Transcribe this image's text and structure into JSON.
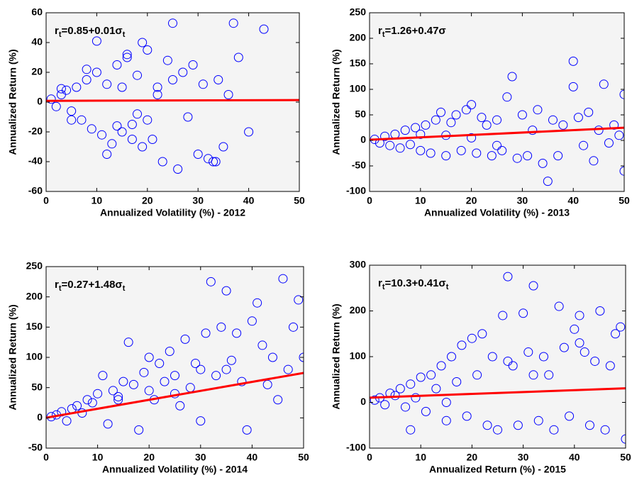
{
  "chart_data": [
    {
      "type": "scatter",
      "xlabel": "Annualized Volatility (%) - 2012",
      "ylabel": "Annualized Return (%)",
      "annotation": [
        "r",
        "t",
        "=0.85+0.01σ",
        "t"
      ],
      "xlim": [
        0,
        50
      ],
      "xticks": [
        0,
        10,
        20,
        30,
        40,
        50
      ],
      "ylim": [
        -60,
        60
      ],
      "yticks": [
        -60,
        -40,
        -20,
        0,
        20,
        40,
        60
      ],
      "color": "#0000ff",
      "x": [
        1,
        2,
        3,
        4,
        5,
        6,
        7,
        8,
        9,
        10,
        11,
        12,
        13,
        14,
        15,
        16,
        17,
        18,
        19,
        20,
        21,
        22,
        23,
        24,
        25,
        26,
        27,
        28,
        29,
        30,
        31,
        32,
        33,
        33.5,
        34,
        35,
        36,
        37,
        38,
        40,
        43,
        10,
        12,
        15,
        18,
        20,
        22,
        25,
        8,
        14,
        16,
        3,
        5,
        17,
        19
      ],
      "values": [
        2,
        -3,
        5,
        8,
        -6,
        10,
        -12,
        15,
        -18,
        20,
        -22,
        12,
        -28,
        25,
        -20,
        30,
        -15,
        18,
        -30,
        35,
        -25,
        10,
        -40,
        28,
        53,
        -45,
        20,
        -10,
        25,
        -35,
        12,
        -38,
        -40,
        -40,
        15,
        -30,
        5,
        53,
        30,
        -20,
        49,
        41,
        -35,
        10,
        -8,
        -12,
        5,
        15,
        22,
        -16,
        32,
        9,
        -12,
        -25,
        40
      ],
      "fit": {
        "x": [
          0,
          50
        ],
        "values": [
          0.85,
          1.35
        ],
        "color": "#ff0000"
      }
    },
    {
      "type": "scatter",
      "xlabel": "Annualized Volatility (%) - 2013",
      "ylabel": "Annualized Return (%)",
      "annotation": [
        "r",
        "t",
        "=1.26+0.47σ"
      ],
      "xlim": [
        0,
        50
      ],
      "xticks": [
        0,
        10,
        20,
        30,
        40,
        50
      ],
      "ylim": [
        -100,
        250
      ],
      "yticks": [
        -100,
        -50,
        0,
        50,
        100,
        150,
        200,
        250
      ],
      "color": "#0000ff",
      "x": [
        1,
        2,
        3,
        4,
        5,
        6,
        7,
        8,
        9,
        10,
        11,
        12,
        13,
        14,
        15,
        16,
        17,
        18,
        19,
        20,
        21,
        22,
        23,
        24,
        25,
        26,
        27,
        28,
        29,
        30,
        31,
        32,
        33,
        34,
        35,
        36,
        37,
        38,
        40,
        40,
        41,
        42,
        43,
        44,
        45,
        46,
        47,
        49,
        50,
        50,
        48,
        15,
        20,
        25,
        10
      ],
      "values": [
        2,
        -5,
        8,
        -10,
        12,
        -15,
        20,
        -8,
        25,
        -20,
        30,
        -25,
        40,
        55,
        -30,
        35,
        50,
        -20,
        60,
        70,
        -25,
        45,
        30,
        -30,
        40,
        -20,
        85,
        125,
        -35,
        50,
        -30,
        20,
        60,
        -45,
        -80,
        40,
        -30,
        30,
        155,
        105,
        45,
        -10,
        55,
        -40,
        20,
        110,
        -5,
        10,
        90,
        -60,
        30,
        10,
        5,
        -10,
        12
      ],
      "fit": {
        "x": [
          0,
          50
        ],
        "values": [
          1.26,
          24.76
        ],
        "color": "#ff0000"
      }
    },
    {
      "type": "scatter",
      "xlabel": "Annualized Volatility (%) - 2014",
      "ylabel": "Annualized Return (%)",
      "annotation": [
        "r",
        "t",
        "=0.27+1.48σ",
        "t"
      ],
      "xlim": [
        0,
        50
      ],
      "xticks": [
        0,
        10,
        20,
        30,
        40,
        50
      ],
      "ylim": [
        -50,
        250
      ],
      "yticks": [
        -50,
        0,
        50,
        100,
        150,
        200,
        250
      ],
      "color": "#0000ff",
      "x": [
        1,
        2,
        3,
        4,
        5,
        6,
        7,
        8,
        9,
        10,
        11,
        12,
        13,
        14,
        15,
        16,
        17,
        18,
        19,
        20,
        21,
        22,
        23,
        24,
        25,
        26,
        27,
        28,
        29,
        30,
        31,
        32,
        33,
        34,
        35,
        36,
        37,
        38,
        39,
        40,
        41,
        42,
        43,
        44,
        45,
        46,
        47,
        48,
        49,
        50,
        14,
        20,
        25,
        30,
        35
      ],
      "values": [
        2,
        5,
        10,
        -5,
        15,
        20,
        8,
        30,
        25,
        40,
        70,
        -10,
        45,
        30,
        60,
        125,
        55,
        -20,
        75,
        100,
        30,
        90,
        60,
        110,
        70,
        20,
        130,
        50,
        90,
        80,
        140,
        225,
        70,
        150,
        210,
        95,
        140,
        60,
        -20,
        160,
        190,
        120,
        55,
        100,
        30,
        230,
        80,
        150,
        195,
        100,
        35,
        45,
        40,
        -5,
        80
      ],
      "fit": {
        "x": [
          0,
          50
        ],
        "values": [
          0.27,
          74.27
        ],
        "color": "#ff0000"
      }
    },
    {
      "type": "scatter",
      "xlabel": "Annualized Return (%) - 2015",
      "ylabel": "Annualized Return (%)",
      "annotation": [
        "r",
        "t",
        "=10.3+0.41σ",
        "t"
      ],
      "xlim": [
        0,
        50
      ],
      "xticks": [
        0,
        10,
        20,
        30,
        40,
        50
      ],
      "ylim": [
        -100,
        300
      ],
      "yticks": [
        -100,
        0,
        100,
        200,
        300
      ],
      "color": "#0000ff",
      "x": [
        1,
        2,
        3,
        4,
        5,
        6,
        7,
        8,
        9,
        10,
        11,
        12,
        13,
        14,
        15,
        16,
        17,
        18,
        19,
        20,
        21,
        22,
        23,
        24,
        25,
        26,
        27,
        28,
        29,
        30,
        31,
        32,
        33,
        34,
        35,
        36,
        37,
        38,
        39,
        40,
        41,
        42,
        43,
        44,
        45,
        46,
        47,
        48,
        49,
        50,
        8,
        15,
        27,
        32,
        41
      ],
      "values": [
        5,
        10,
        -5,
        20,
        15,
        30,
        -10,
        40,
        10,
        55,
        -20,
        60,
        30,
        80,
        -40,
        100,
        45,
        125,
        -30,
        140,
        60,
        150,
        -50,
        100,
        -60,
        190,
        275,
        80,
        -50,
        195,
        110,
        255,
        -40,
        100,
        60,
        -60,
        210,
        120,
        -30,
        160,
        190,
        110,
        -50,
        90,
        200,
        -60,
        80,
        150,
        165,
        -80,
        -60,
        0,
        90,
        60,
        130
      ],
      "fit": {
        "x": [
          0,
          50
        ],
        "values": [
          10.3,
          30.8
        ],
        "color": "#ff0000"
      }
    }
  ]
}
